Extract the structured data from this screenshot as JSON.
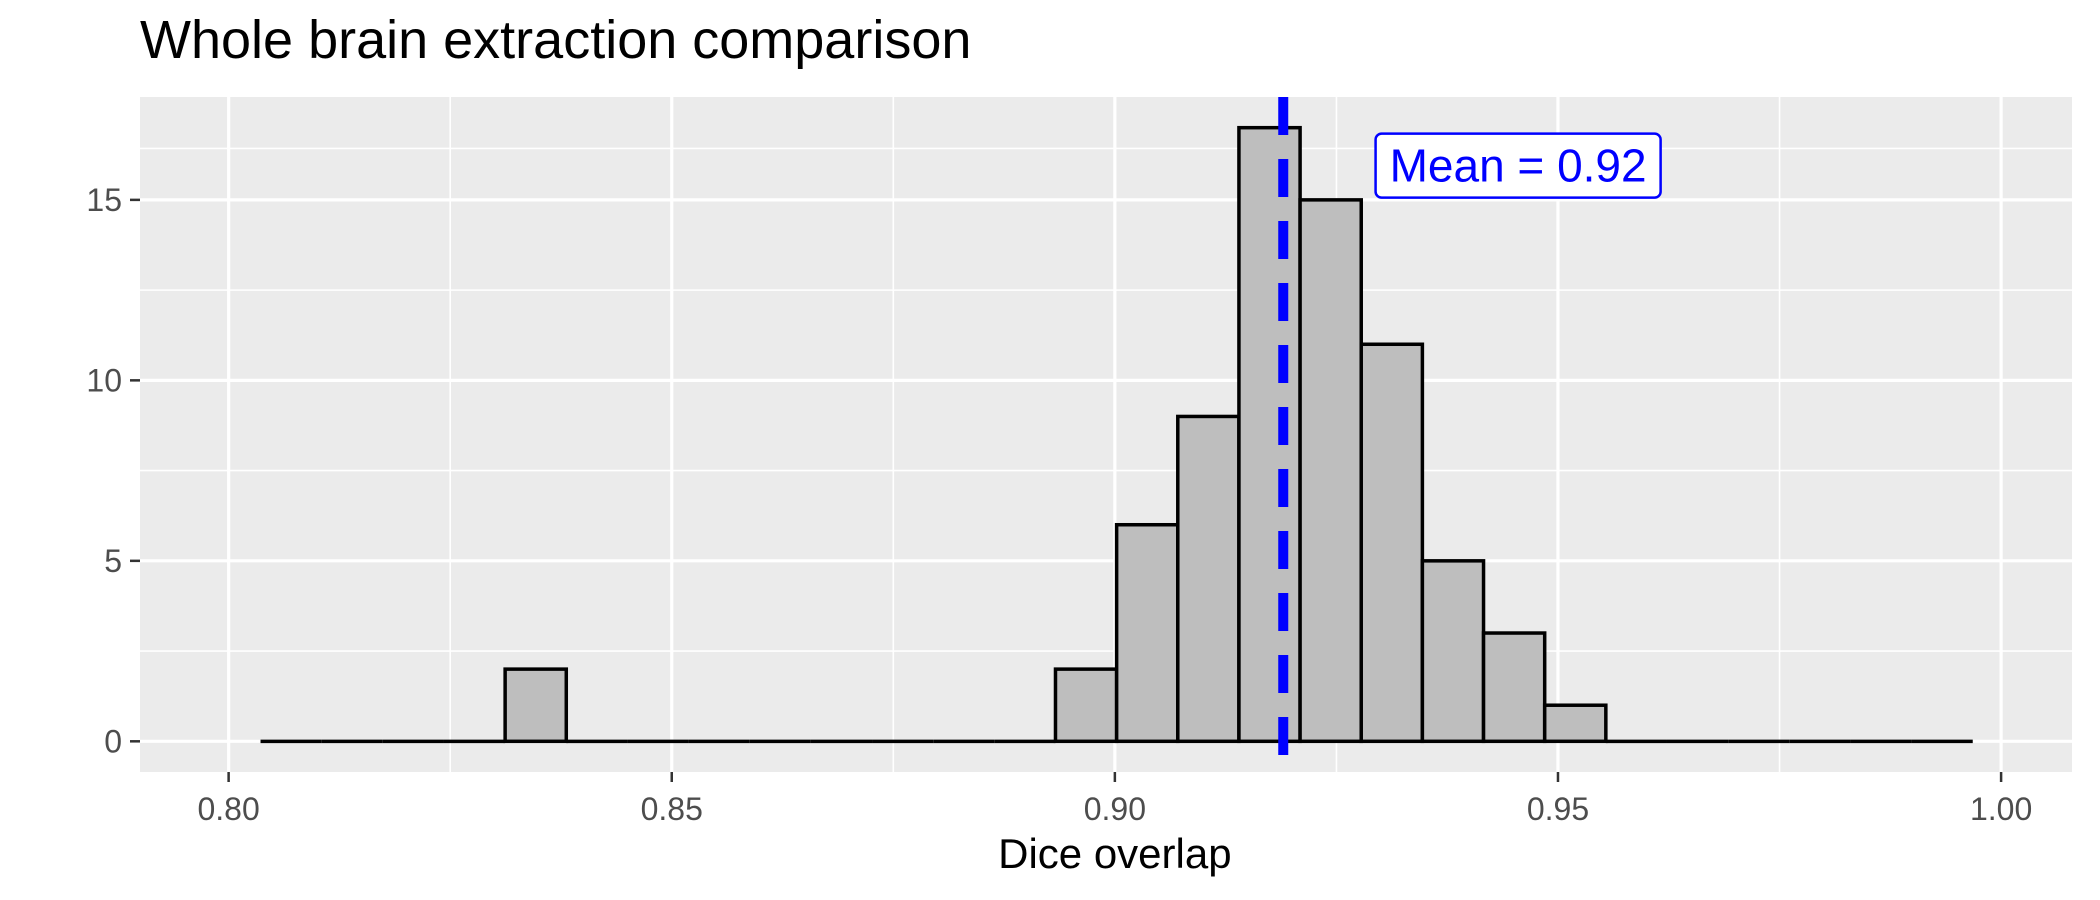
{
  "chart_data": {
    "type": "bar",
    "title": "Whole brain extraction comparison",
    "xlabel": "Dice overlap",
    "ylabel": "",
    "xlim": [
      0.79,
      1.008
    ],
    "ylim": [
      -0.85,
      17.85
    ],
    "x_ticks": [
      "0.80",
      "0.85",
      "0.90",
      "0.95",
      "1.00"
    ],
    "x_tick_values": [
      0.8,
      0.85,
      0.9,
      0.95,
      1.0
    ],
    "y_ticks": [
      "0",
      "5",
      "10",
      "15"
    ],
    "y_tick_values": [
      0,
      5,
      10,
      15
    ],
    "bin_range": [
      0.8036,
      0.9969
    ],
    "bin_width": 0.0069,
    "bin_starts": [
      0.8036,
      0.8105,
      0.8174,
      0.8243,
      0.8312,
      0.8381,
      0.845,
      0.8519,
      0.8588,
      0.8657,
      0.8726,
      0.8795,
      0.8864,
      0.8933,
      0.9002,
      0.9071,
      0.914,
      0.9209,
      0.9278,
      0.9347,
      0.9416,
      0.9485,
      0.9554,
      0.9623,
      0.9692,
      0.9761,
      0.983,
      0.9899
    ],
    "counts": [
      0,
      0,
      0,
      0,
      2,
      0,
      0,
      0,
      0,
      0,
      0,
      0,
      0,
      2,
      6,
      9,
      17,
      15,
      11,
      5,
      3,
      1,
      0,
      0,
      0,
      0,
      0,
      0
    ],
    "mean": 0.919,
    "annotation": "Mean = 0.92",
    "colors": {
      "panel_background": "#ebebeb",
      "grid": "#ffffff",
      "bar_fill": "#bebebe",
      "bar_outline": "#000000",
      "mean_line": "#0000ff",
      "annotation_text": "#0000ff"
    },
    "grid": true,
    "legend": "none"
  }
}
